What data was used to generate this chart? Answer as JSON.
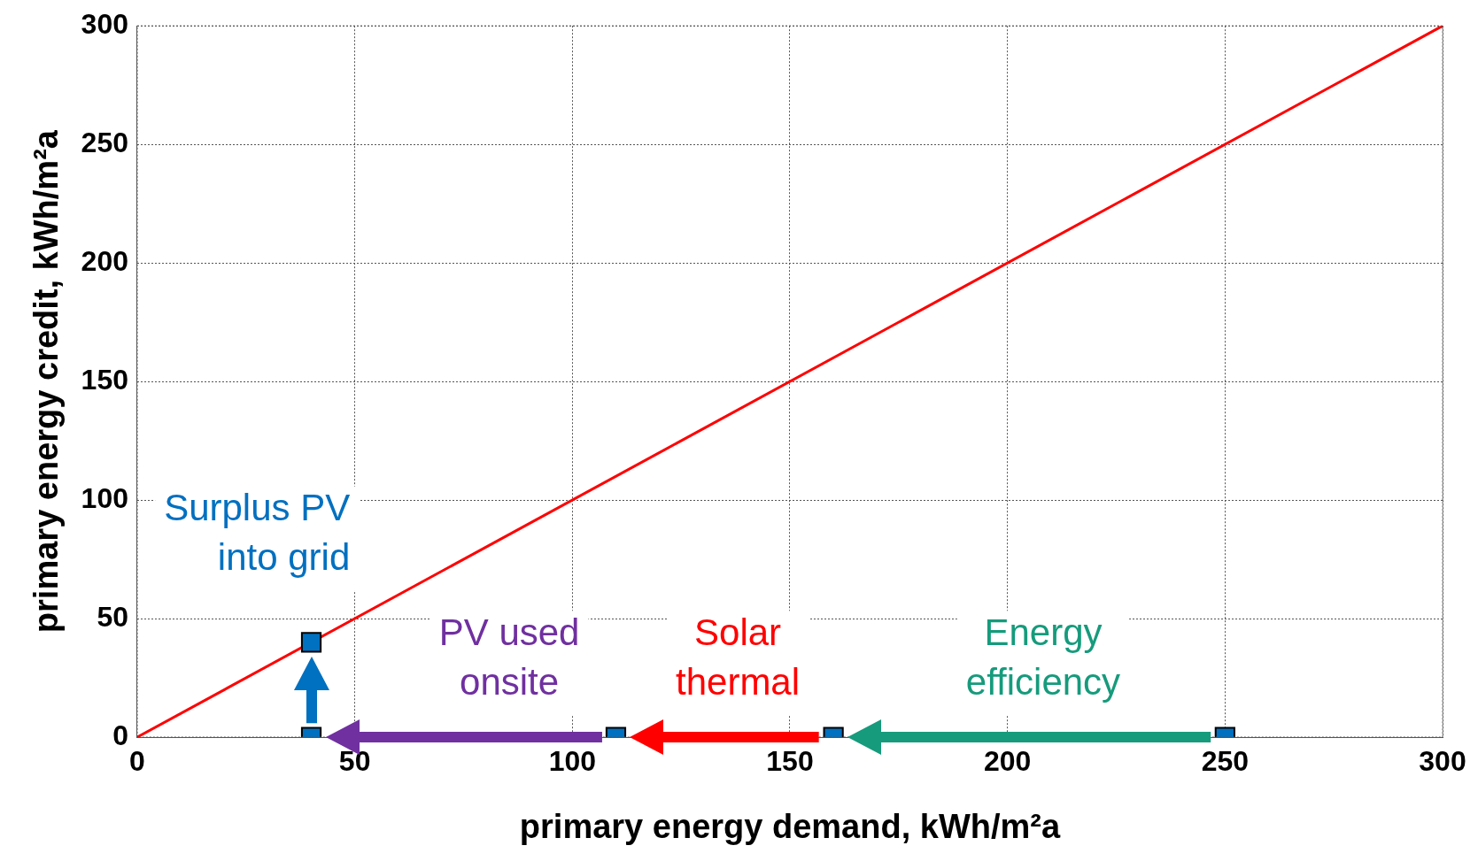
{
  "chart_data": {
    "type": "scatter",
    "xlabel": "primary energy demand, kWh/m²a",
    "ylabel": "primary energy credit, kWh/m²a",
    "xlim": [
      0,
      300
    ],
    "xticks": [
      0,
      50,
      100,
      150,
      200,
      250,
      300
    ],
    "ylim": [
      0,
      300
    ],
    "yticks": [
      0,
      50,
      100,
      150,
      200,
      250,
      300
    ],
    "grid": true,
    "legend": false,
    "series": [
      {
        "type": "line",
        "color": "#ff0000",
        "x": [
          0,
          300
        ],
        "values": [
          0,
          300
        ],
        "marker": "none",
        "line_style": "solid"
      },
      {
        "type": "scatter",
        "color": "#0070c0",
        "x": [
          40,
          40,
          110,
          160,
          250
        ],
        "values": [
          0,
          40,
          0,
          0,
          0
        ],
        "marker": "square"
      }
    ],
    "annotations": [
      "Surplus PV into grid",
      "PV used onsite",
      "Solar thermal",
      "Energy efficiency"
    ]
  }
}
